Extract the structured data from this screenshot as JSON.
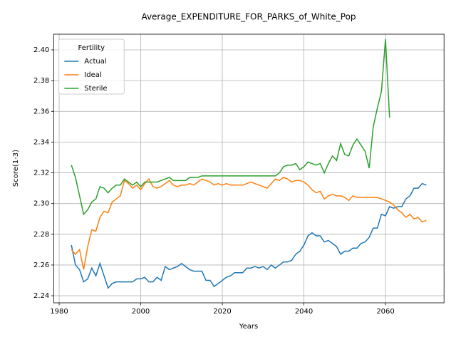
{
  "chart_data": {
    "type": "line",
    "title": "Average_EXPENDITURE_FOR_PARKS_of_White_Pop",
    "xlabel": "Years",
    "ylabel": "Score(1-3)",
    "legend_title": "Fertility",
    "legend_loc": "upper left",
    "grid": true,
    "xlim": [
      1978.65,
      2074.35
    ],
    "xticks": [
      1980,
      2000,
      2020,
      2040,
      2060
    ],
    "ylim": [
      2.2354,
      2.4102
    ],
    "yticks": [
      2.24,
      2.26,
      2.28,
      {
        "value": 2.3,
        "label": "2.30"
      },
      2.32,
      2.34,
      2.36,
      2.38,
      {
        "value": 2.4,
        "label": "2.40"
      }
    ],
    "x": [
      1983,
      1984,
      1985,
      1986,
      1987,
      1988,
      1989,
      1990,
      1991,
      1992,
      1993,
      1994,
      1995,
      1996,
      1997,
      1998,
      1999,
      2000,
      2001,
      2002,
      2003,
      2004,
      2005,
      2006,
      2007,
      2008,
      2009,
      2010,
      2011,
      2012,
      2013,
      2014,
      2015,
      2016,
      2017,
      2018,
      2019,
      2020,
      2021,
      2022,
      2023,
      2024,
      2025,
      2026,
      2027,
      2028,
      2029,
      2030,
      2031,
      2032,
      2033,
      2034,
      2035,
      2036,
      2037,
      2038,
      2039,
      2040,
      2041,
      2042,
      2043,
      2044,
      2045,
      2046,
      2047,
      2048,
      2049,
      2050,
      2051,
      2052,
      2053,
      2054,
      2055,
      2056,
      2057,
      2058,
      2059,
      2060,
      2061,
      2062,
      2063,
      2064,
      2065,
      2066,
      2067,
      2068,
      2069,
      2070
    ],
    "series": [
      {
        "name": "Actual",
        "color": "#1f77b4",
        "values": [
          2.273,
          2.26,
          2.257,
          2.249,
          2.251,
          2.258,
          2.253,
          2.261,
          2.253,
          2.245,
          2.248,
          2.249,
          2.249,
          2.249,
          2.249,
          2.249,
          2.251,
          2.251,
          2.252,
          2.249,
          2.249,
          2.252,
          2.25,
          2.259,
          2.257,
          2.258,
          2.259,
          2.261,
          2.259,
          2.257,
          2.256,
          2.256,
          2.256,
          2.25,
          2.25,
          2.246,
          2.248,
          2.25,
          2.252,
          2.253,
          2.255,
          2.255,
          2.255,
          2.258,
          2.258,
          2.259,
          2.258,
          2.259,
          2.257,
          2.26,
          2.258,
          2.26,
          2.262,
          2.262,
          2.263,
          2.267,
          2.269,
          2.273,
          2.279,
          2.281,
          2.279,
          2.279,
          2.275,
          2.276,
          2.274,
          2.272,
          2.267,
          2.269,
          2.269,
          2.271,
          2.271,
          2.274,
          2.275,
          2.278,
          2.284,
          2.284,
          2.293,
          2.292,
          2.298,
          2.297,
          2.298,
          2.298,
          2.303,
          2.305,
          2.31,
          2.31,
          2.313,
          2.312
        ]
      },
      {
        "name": "Ideal",
        "color": "#ff7f0e",
        "values": [
          2.27,
          2.267,
          2.27,
          2.257,
          2.272,
          2.283,
          2.282,
          2.291,
          2.295,
          2.294,
          2.301,
          2.303,
          2.305,
          2.315,
          2.313,
          2.31,
          2.312,
          2.309,
          2.313,
          2.316,
          2.311,
          2.31,
          2.311,
          2.313,
          2.315,
          2.312,
          2.311,
          2.312,
          2.312,
          2.313,
          2.312,
          2.314,
          2.316,
          2.315,
          2.314,
          2.312,
          2.313,
          2.312,
          2.313,
          2.312,
          2.312,
          2.312,
          2.312,
          2.313,
          2.314,
          2.313,
          2.312,
          2.311,
          2.31,
          2.313,
          2.316,
          2.315,
          2.317,
          2.316,
          2.314,
          2.315,
          2.315,
          2.314,
          2.312,
          2.309,
          2.307,
          2.308,
          2.303,
          2.305,
          2.306,
          2.305,
          2.305,
          2.304,
          2.302,
          2.305,
          2.304,
          2.304,
          2.304,
          2.304,
          2.304,
          2.304,
          2.303,
          2.302,
          2.301,
          2.299,
          2.296,
          2.294,
          2.291,
          2.293,
          2.29,
          2.291,
          2.288,
          2.289
        ]
      },
      {
        "name": "Sterile",
        "color": "#2ca02c",
        "values": [
          2.325,
          2.317,
          2.305,
          2.293,
          2.296,
          2.301,
          2.303,
          2.311,
          2.31,
          2.307,
          2.31,
          2.312,
          2.312,
          2.316,
          2.314,
          2.312,
          2.314,
          2.311,
          2.314,
          2.314,
          2.314,
          2.314,
          2.315,
          2.316,
          2.317,
          2.315,
          2.315,
          2.315,
          2.315,
          2.317,
          2.317,
          2.317,
          2.318,
          2.318,
          2.318,
          2.318,
          2.318,
          2.318,
          2.318,
          2.318,
          2.318,
          2.318,
          2.318,
          2.318,
          2.318,
          2.318,
          2.318,
          2.318,
          2.318,
          2.318,
          2.318,
          2.32,
          2.324,
          2.325,
          2.325,
          2.326,
          2.322,
          2.324,
          2.327,
          2.326,
          2.325,
          2.326,
          2.32,
          2.326,
          2.331,
          2.328,
          2.339,
          2.332,
          2.331,
          2.338,
          2.342,
          2.338,
          2.334,
          2.323,
          2.35,
          2.362,
          2.373,
          2.407,
          2.356,
          null,
          null,
          null,
          null,
          null,
          null,
          null,
          null,
          null
        ]
      }
    ]
  }
}
